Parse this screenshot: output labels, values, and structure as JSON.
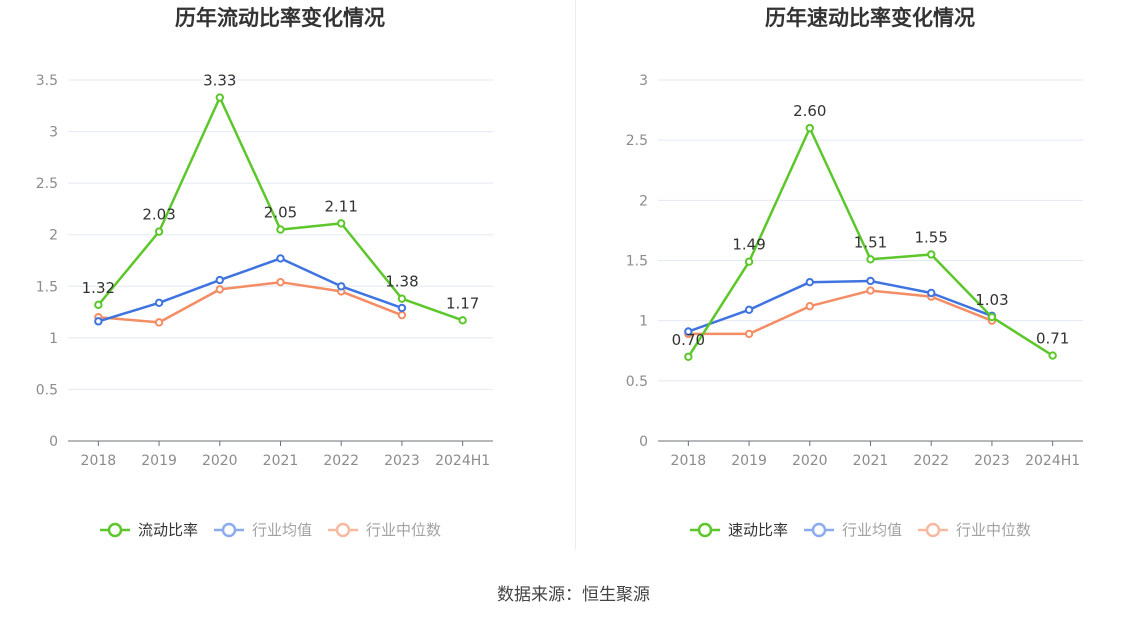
{
  "source_text": "数据来源：恒生聚源",
  "colors": {
    "series_main": "#5cc72a",
    "industry_avg": "#3f74e0",
    "industry_median": "#f48c64",
    "axis_text": "#8c8c8c",
    "grid": "#e4e8f2",
    "title": "#333333"
  },
  "chart_data": [
    {
      "type": "line",
      "title": "历年流动比率变化情况",
      "categories": [
        "2018",
        "2019",
        "2020",
        "2021",
        "2022",
        "2023",
        "2024H1"
      ],
      "ylim": [
        0,
        3.5
      ],
      "yticks": [
        0,
        0.5,
        1,
        1.5,
        2,
        2.5,
        3,
        3.5
      ],
      "ytick_labels": [
        "0",
        "0.5",
        "1",
        "1.5",
        "2",
        "2.5",
        "3",
        "3.5"
      ],
      "grid": true,
      "legend_position": "bottom",
      "series": [
        {
          "name": "流动比率",
          "values": [
            1.32,
            2.03,
            3.33,
            2.05,
            2.11,
            1.38,
            1.17
          ],
          "labels": [
            "1.32",
            "2.03",
            "3.33",
            "2.05",
            "2.11",
            "1.38",
            "1.17"
          ],
          "color": "#5cc72a"
        },
        {
          "name": "行业均值",
          "values": [
            1.16,
            1.34,
            1.56,
            1.77,
            1.5,
            1.29,
            null
          ],
          "color": "#3f74e0"
        },
        {
          "name": "行业中位数",
          "values": [
            1.2,
            1.15,
            1.47,
            1.54,
            1.45,
            1.22,
            null
          ],
          "color": "#f48c64"
        }
      ]
    },
    {
      "type": "line",
      "title": "历年速动比率变化情况",
      "categories": [
        "2018",
        "2019",
        "2020",
        "2021",
        "2022",
        "2023",
        "2024H1"
      ],
      "ylim": [
        0,
        3
      ],
      "yticks": [
        0,
        0.5,
        1,
        1.5,
        2,
        2.5,
        3
      ],
      "ytick_labels": [
        "0",
        "0.5",
        "1",
        "1.5",
        "2",
        "2.5",
        "3"
      ],
      "grid": true,
      "legend_position": "bottom",
      "series": [
        {
          "name": "速动比率",
          "values": [
            0.7,
            1.49,
            2.6,
            1.51,
            1.55,
            1.03,
            0.71
          ],
          "labels": [
            "0.70",
            "1.49",
            "2.60",
            "1.51",
            "1.55",
            "1.03",
            "0.71"
          ],
          "color": "#5cc72a"
        },
        {
          "name": "行业均值",
          "values": [
            0.91,
            1.09,
            1.32,
            1.33,
            1.23,
            1.04,
            null
          ],
          "color": "#3f74e0"
        },
        {
          "name": "行业中位数",
          "values": [
            0.89,
            0.89,
            1.12,
            1.25,
            1.2,
            1.0,
            null
          ],
          "color": "#f48c64"
        }
      ]
    }
  ]
}
